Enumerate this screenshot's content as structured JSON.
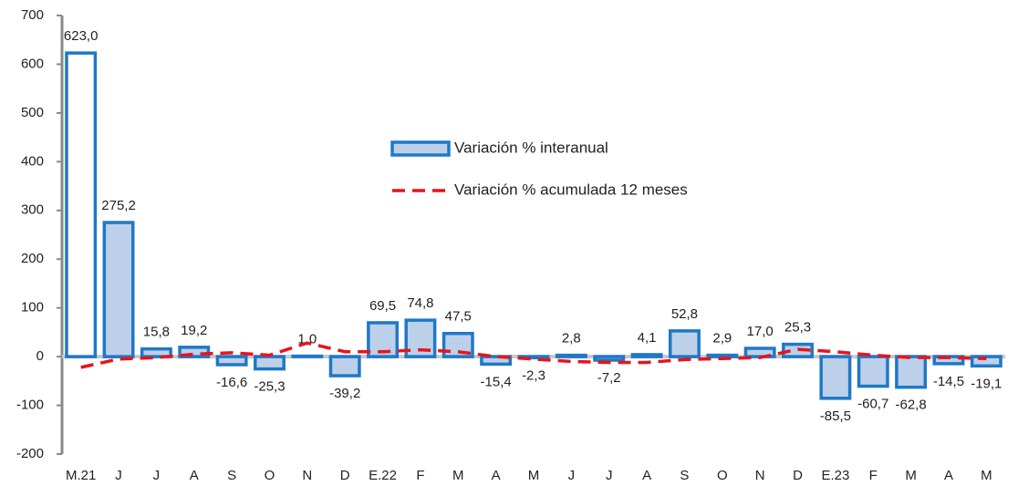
{
  "chart_data": {
    "type": "bar",
    "categories": [
      "M.21",
      "J",
      "J",
      "A",
      "S",
      "O",
      "N",
      "D",
      "E.22",
      "F",
      "M",
      "A",
      "M",
      "J",
      "J",
      "A",
      "S",
      "O",
      "N",
      "D",
      "E.23",
      "F",
      "M",
      "A",
      "M"
    ],
    "series": [
      {
        "name": "Variación % interanual",
        "type": "bar",
        "color": "#bdd0e9",
        "edge_color": "#1f78c8",
        "colors": [
          "#ffffff",
          "#bdd0e9",
          "#bdd0e9",
          "#bdd0e9",
          "#bdd0e9",
          "#bdd0e9",
          "#bdd0e9",
          "#bdd0e9",
          "#bdd0e9",
          "#bdd0e9",
          "#bdd0e9",
          "#bdd0e9",
          "#bdd0e9",
          "#bdd0e9",
          "#bdd0e9",
          "#bdd0e9",
          "#bdd0e9",
          "#bdd0e9",
          "#bdd0e9",
          "#bdd0e9",
          "#bdd0e9",
          "#bdd0e9",
          "#bdd0e9",
          "#bdd0e9",
          "#bdd0e9"
        ],
        "values": [
          623.0,
          275.2,
          15.8,
          19.2,
          -16.6,
          -25.3,
          1.0,
          -39.2,
          69.5,
          74.8,
          47.5,
          -15.4,
          -2.3,
          2.8,
          -7.2,
          4.1,
          52.8,
          2.9,
          17.0,
          25.3,
          -85.5,
          -60.7,
          -62.8,
          -14.5,
          -19.1
        ],
        "value_labels": [
          "623,0",
          "275,2",
          "15,8",
          "19,2",
          "-16,6",
          "-25,3",
          "1,0",
          "-39,2",
          "69,5",
          "74,8",
          "47,5",
          "-15,4",
          "-2,3",
          "2,8",
          "-7,2",
          "4,1",
          "52,8",
          "2,9",
          "17,0",
          "25,3",
          "-85,5",
          "-60,7",
          "-62,8",
          "-14,5",
          "-19,1"
        ]
      },
      {
        "name": "Variación % acumulada 12 meses",
        "type": "line",
        "color": "#e8141b",
        "dashed": true,
        "values": [
          -22,
          -5,
          -2,
          5,
          8,
          3,
          28,
          10,
          10,
          14,
          10,
          0,
          -5,
          -10,
          -12,
          -12,
          -6,
          -4,
          -2,
          15,
          10,
          3,
          -2,
          -2,
          -4
        ]
      }
    ],
    "ylim": [
      -200,
      700
    ],
    "yticks": [
      -200,
      -100,
      0,
      100,
      200,
      300,
      400,
      500,
      600,
      700
    ],
    "grid": false
  }
}
